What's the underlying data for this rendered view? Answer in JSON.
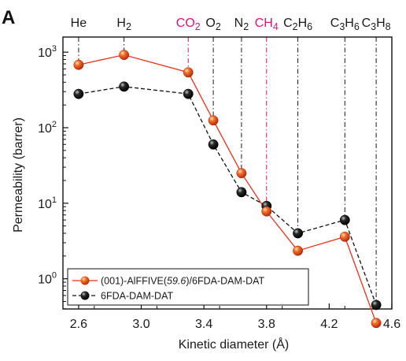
{
  "panel_label": "A",
  "chart_data": {
    "type": "line",
    "xlabel": "Kinetic diameter (Å)",
    "ylabel": "Permeability (barrer)",
    "xlim": [
      2.5,
      4.6
    ],
    "ylim_log10": [
      -0.4,
      3.2
    ],
    "yscale": "log",
    "x_ticks": [
      "2.6",
      "3.0",
      "3.4",
      "3.8",
      "4.2",
      "4.6"
    ],
    "x_tick_values": [
      2.6,
      3.0,
      3.4,
      3.8,
      4.2,
      4.6
    ],
    "y_ticks": [
      {
        "value": 1,
        "base": "10",
        "exp": "0"
      },
      {
        "value": 10,
        "base": "10",
        "exp": "1"
      },
      {
        "value": 100,
        "base": "10",
        "exp": "2"
      },
      {
        "value": 1000,
        "base": "10",
        "exp": "3"
      }
    ],
    "gases": [
      {
        "x": 2.6,
        "parts": [
          [
            "He",
            "n"
          ]
        ],
        "color": "#1a1a1a"
      },
      {
        "x": 2.89,
        "parts": [
          [
            "H",
            "n"
          ],
          [
            "2",
            "sub"
          ]
        ],
        "color": "#1a1a1a"
      },
      {
        "x": 3.3,
        "parts": [
          [
            "CO",
            "n"
          ],
          [
            "2",
            "sub"
          ]
        ],
        "color": "#d6137a"
      },
      {
        "x": 3.46,
        "parts": [
          [
            "O",
            "n"
          ],
          [
            "2",
            "sub"
          ]
        ],
        "color": "#1a1a1a"
      },
      {
        "x": 3.64,
        "parts": [
          [
            "N",
            "n"
          ],
          [
            "2",
            "sub"
          ]
        ],
        "color": "#1a1a1a"
      },
      {
        "x": 3.8,
        "parts": [
          [
            "CH",
            "n"
          ],
          [
            "4",
            "sub"
          ]
        ],
        "color": "#d6137a"
      },
      {
        "x": 4.0,
        "parts": [
          [
            "C",
            "n"
          ],
          [
            "2",
            "sub"
          ],
          [
            "H",
            "n"
          ],
          [
            "6",
            "sub"
          ]
        ],
        "color": "#1a1a1a"
      },
      {
        "x": 4.3,
        "parts": [
          [
            "C",
            "n"
          ],
          [
            "3",
            "sub"
          ],
          [
            "H",
            "n"
          ],
          [
            "6",
            "sub"
          ]
        ],
        "color": "#1a1a1a"
      },
      {
        "x": 4.5,
        "parts": [
          [
            "C",
            "n"
          ],
          [
            "3",
            "sub"
          ],
          [
            "H",
            "n"
          ],
          [
            "8",
            "sub"
          ]
        ],
        "color": "#1a1a1a"
      }
    ],
    "series": [
      {
        "name": "(001)-AlFFIVE(59.6)/6FDA-DAM-DAT",
        "name_parts": [
          [
            "(001)-AlFFIVE(",
            "n"
          ],
          [
            "59.6",
            "it"
          ],
          [
            ")/6FDA-DAM-DAT",
            "n"
          ]
        ],
        "line_color": "#e8321e",
        "marker_color": "#f25a1f",
        "dash": "solid",
        "x": [
          2.6,
          2.89,
          3.3,
          3.46,
          3.64,
          3.8,
          4.0,
          4.3,
          4.5
        ],
        "y": [
          680,
          920,
          540,
          125,
          25,
          7.8,
          2.35,
          3.6,
          0.26
        ]
      },
      {
        "name": "6FDA-DAM-DAT",
        "name_parts": [
          [
            "6FDA-DAM-DAT",
            "n"
          ]
        ],
        "line_color": "#111111",
        "marker_color": "#1b1b1b",
        "dash": "dashed",
        "x": [
          2.6,
          2.89,
          3.3,
          3.46,
          3.64,
          3.8,
          4.0,
          4.3,
          4.5
        ],
        "y": [
          280,
          350,
          280,
          60,
          14,
          9.2,
          4.0,
          6.0,
          0.45
        ]
      }
    ],
    "legend_position": "bottom-left"
  }
}
